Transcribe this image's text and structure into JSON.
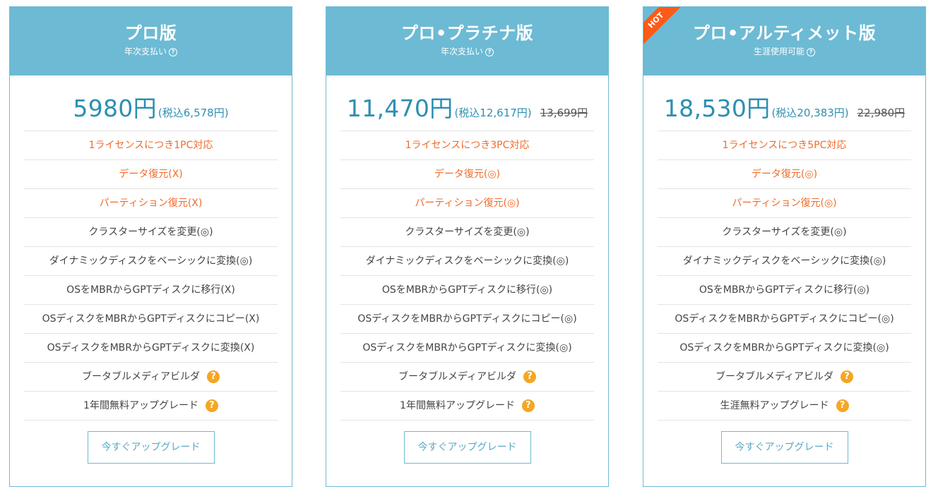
{
  "plans": [
    {
      "name": "プロ版",
      "billing": "年次支払い",
      "ribbon": "",
      "price": "5980円",
      "tax": "(税込6,578円)",
      "old_price": "",
      "features": [
        {
          "text": "1ライセンスにつき1PC対応",
          "style": "orange",
          "help": false
        },
        {
          "text": "データ復元(X)",
          "style": "orange",
          "help": false
        },
        {
          "text": "パーティション復元(X)",
          "style": "orange",
          "help": false
        },
        {
          "text": "クラスターサイズを変更(◎)",
          "style": "dark",
          "help": false
        },
        {
          "text": "ダイナミックディスクをベーシックに変換(◎)",
          "style": "dark",
          "help": false
        },
        {
          "text": "OSをMBRからGPTディスクに移行(X)",
          "style": "dark",
          "help": false
        },
        {
          "text": "OSディスクをMBRからGPTディスクにコピー(X)",
          "style": "dark",
          "help": false
        },
        {
          "text": "OSディスクをMBRからGPTディスクに変換(X)",
          "style": "dark",
          "help": false
        },
        {
          "text": "ブータブルメディアビルダ",
          "style": "dark",
          "help": true
        },
        {
          "text": "1年間無料アップグレード",
          "style": "dark",
          "help": true
        }
      ],
      "cta": "今すぐアップグレード"
    },
    {
      "name": "プロ•プラチナ版",
      "billing": "年次支払い",
      "ribbon": "",
      "price": "11,470円",
      "tax": "(税込12,617円)",
      "old_price": "13,699円",
      "features": [
        {
          "text": "1ライセンスにつき3PC対応",
          "style": "orange",
          "help": false
        },
        {
          "text": "データ復元(◎)",
          "style": "orange",
          "help": false
        },
        {
          "text": "パーティション復元(◎)",
          "style": "orange",
          "help": false
        },
        {
          "text": "クラスターサイズを変更(◎)",
          "style": "dark",
          "help": false
        },
        {
          "text": "ダイナミックディスクをベーシックに変換(◎)",
          "style": "dark",
          "help": false
        },
        {
          "text": "OSをMBRからGPTディスクに移行(◎)",
          "style": "dark",
          "help": false
        },
        {
          "text": "OSディスクをMBRからGPTディスクにコピー(◎)",
          "style": "dark",
          "help": false
        },
        {
          "text": "OSディスクをMBRからGPTディスクに変換(◎)",
          "style": "dark",
          "help": false
        },
        {
          "text": "ブータブルメディアビルダ",
          "style": "dark",
          "help": true
        },
        {
          "text": "1年間無料アップグレード",
          "style": "dark",
          "help": true
        }
      ],
      "cta": "今すぐアップグレード"
    },
    {
      "name": "プロ•アルティメット版",
      "billing": "生涯使用可能",
      "ribbon": "HOT",
      "price": "18,530円",
      "tax": "(税込20,383円)",
      "old_price": "22,980円",
      "features": [
        {
          "text": "1ライセンスにつき5PC対応",
          "style": "orange",
          "help": false
        },
        {
          "text": "データ復元(◎)",
          "style": "orange",
          "help": false
        },
        {
          "text": "パーティション復元(◎)",
          "style": "orange",
          "help": false
        },
        {
          "text": "クラスターサイズを変更(◎)",
          "style": "dark",
          "help": false
        },
        {
          "text": "ダイナミックディスクをベーシックに変換(◎)",
          "style": "dark",
          "help": false
        },
        {
          "text": "OSをMBRからGPTディスクに移行(◎)",
          "style": "dark",
          "help": false
        },
        {
          "text": "OSディスクをMBRからGPTディスクにコピー(◎)",
          "style": "dark",
          "help": false
        },
        {
          "text": "OSディスクをMBRからGPTディスクに変換(◎)",
          "style": "dark",
          "help": false
        },
        {
          "text": "ブータブルメディアビルダ",
          "style": "dark",
          "help": true
        },
        {
          "text": "生涯無料アップグレード",
          "style": "dark",
          "help": true
        }
      ],
      "cta": "今すぐアップグレード"
    }
  ],
  "icons": {
    "help_small": "?",
    "help_big": "?"
  },
  "colors": {
    "header": "#6dbad4",
    "price": "#2d8fb0",
    "feature_highlight": "#f26b2a",
    "help_icon": "#f5a623",
    "ribbon": "#ff5a16"
  }
}
